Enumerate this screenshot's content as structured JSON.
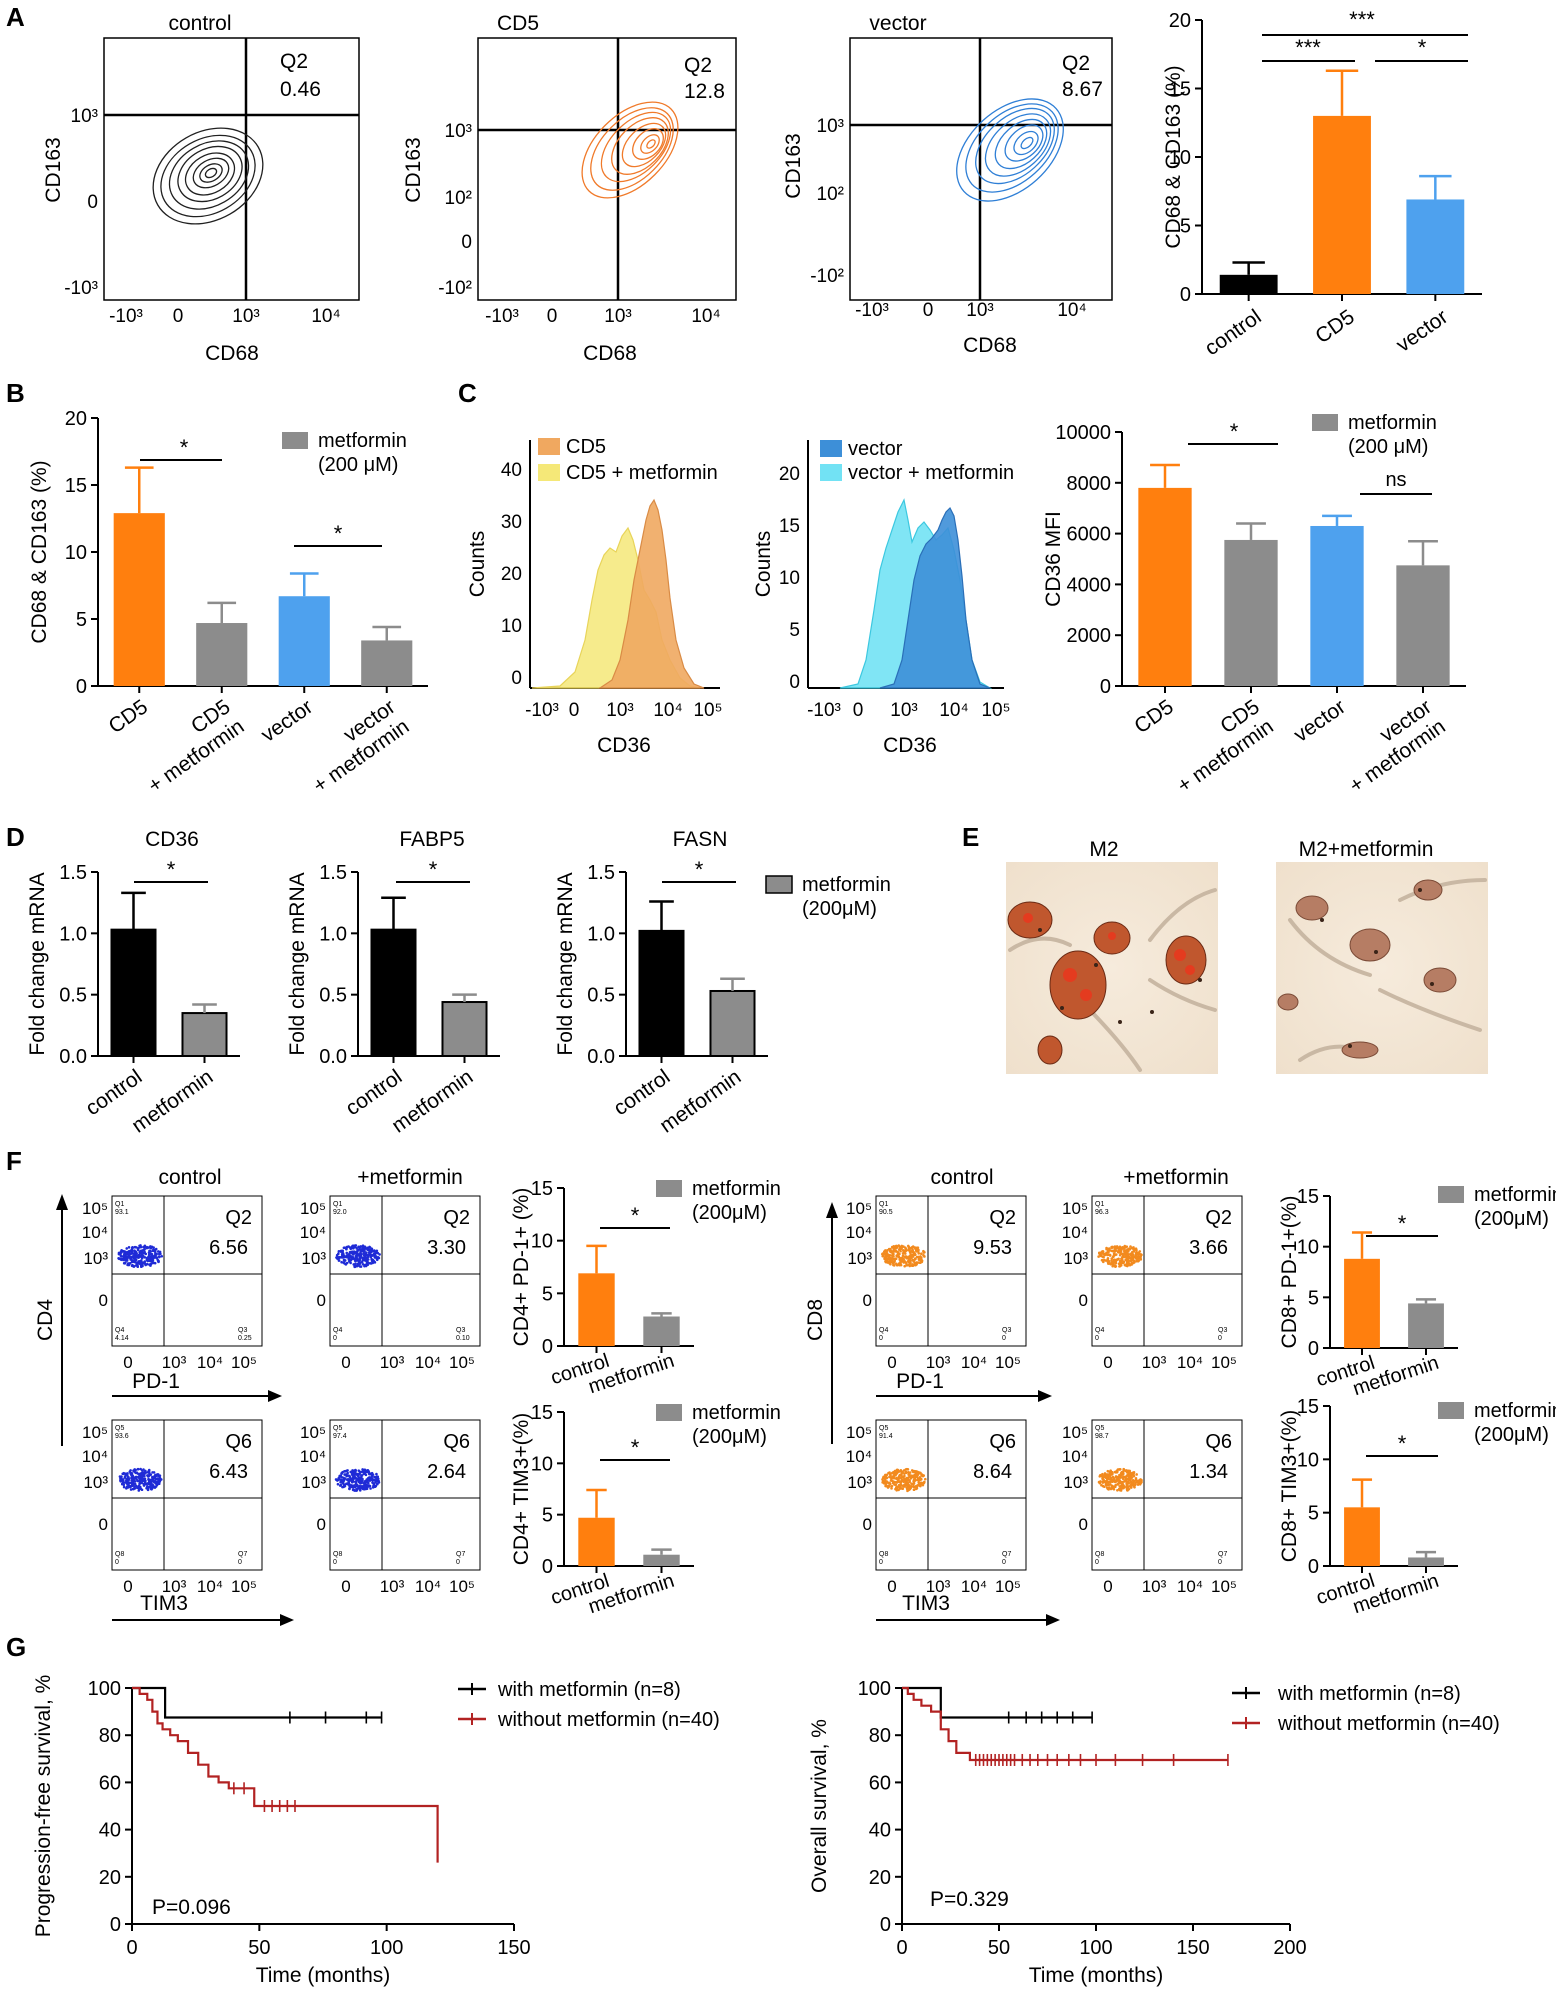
{
  "colors": {
    "black": "#000000",
    "orange": "#ff7f0e",
    "blue": "#4ea1ee",
    "grey": "#8c8c8c",
    "contour_black": "#202020",
    "contour_orange": "#f07a2a",
    "contour_blue": "#2f7fd6",
    "hist_cd5": "#f0a860",
    "hist_cd5_met": "#f5e878",
    "hist_vector": "#3d8fd8",
    "hist_vector_met": "#72e2f4",
    "survival_with": "#000000",
    "survival_without": "#b22222",
    "stain_m2": "#b5472a",
    "stain_m2_met": "#a8634a"
  },
  "panels": {
    "A": "A",
    "B": "B",
    "C": "C",
    "D": "D",
    "E": "E",
    "F": "F",
    "G": "G"
  },
  "A": {
    "flow": [
      {
        "title": "control",
        "q_label": "Q2",
        "q_value": "0.46",
        "y_ticks": [
          "10³",
          "0",
          "-10³"
        ],
        "x_ticks": [
          "-10³",
          "0",
          "10³",
          "10⁴"
        ]
      },
      {
        "title": "CD5",
        "q_label": "Q2",
        "q_value": "12.8",
        "y_ticks": [
          "10³",
          "10²",
          "0",
          "-10²"
        ],
        "x_ticks": [
          "-10³",
          "0",
          "10³",
          "10⁴"
        ]
      },
      {
        "title": "vector",
        "q_label": "Q2",
        "q_value": "8.67",
        "y_ticks": [
          "10³",
          "10²",
          "-10²"
        ],
        "x_ticks": [
          "-10³",
          "0",
          "10³",
          "10⁴"
        ]
      }
    ],
    "flow_ylabel": "CD163",
    "flow_xlabel": "CD68",
    "significance": [
      "***",
      "***",
      "*"
    ]
  },
  "B": {
    "significance": [
      "*",
      "*"
    ]
  },
  "C": {
    "hist": [
      {
        "legend": [
          "CD5",
          "CD5 + metformin"
        ],
        "y_ticks": [
          "40",
          "30",
          "20",
          "10",
          "0"
        ],
        "x_ticks": [
          "-10³",
          "0",
          "10³",
          "10⁴",
          "10⁵"
        ],
        "ylabel": "Counts",
        "xlabel": "CD36"
      },
      {
        "legend": [
          "vector",
          "vector + metformin"
        ],
        "y_ticks": [
          "20",
          "15",
          "10",
          "5",
          "0"
        ],
        "x_ticks": [
          "-10³",
          "0",
          "10³",
          "10⁴",
          "10⁵"
        ],
        "ylabel": "Counts",
        "xlabel": "CD36"
      }
    ],
    "significance": [
      "*",
      "ns"
    ]
  },
  "D": {
    "titles": [
      "CD36",
      "FABP5",
      "FASN"
    ],
    "significance": [
      "*",
      "*",
      "*"
    ]
  },
  "E": {
    "labels": [
      "M2",
      "M2+metformin"
    ]
  },
  "F": {
    "cd4_label": "CD4",
    "cd8_label": "CD8",
    "col_titles": [
      "control",
      "+metformin"
    ],
    "x_pd1": "PD-1",
    "x_tim3": "TIM3",
    "y_ticks": [
      "10⁵",
      "10⁴",
      "10³",
      "0"
    ],
    "x_ticks": [
      "0",
      "10³",
      "10⁴",
      "10⁵"
    ],
    "dots": [
      {
        "q": "Q2",
        "v": "6.56",
        "tl": "Q1",
        "tl2": "93.1",
        "bl": "Q4",
        "bl2": "4.14",
        "br": "Q3",
        "br2": "0.25"
      },
      {
        "q": "Q2",
        "v": "3.30",
        "tl": "Q1",
        "tl2": "92.0",
        "bl": "Q4",
        "bl2": "0",
        "br": "Q3",
        "br2": "0.10"
      },
      {
        "q": "Q6",
        "v": "6.43",
        "tl": "Q5",
        "tl2": "93.6",
        "bl": "Q8",
        "bl2": "0",
        "br": "Q7",
        "br2": "0"
      },
      {
        "q": "Q6",
        "v": "2.64",
        "tl": "Q5",
        "tl2": "97.4",
        "bl": "Q8",
        "bl2": "0",
        "br": "Q7",
        "br2": "0"
      },
      {
        "q": "Q2",
        "v": "9.53",
        "tl": "Q1",
        "tl2": "90.5",
        "bl": "Q4",
        "bl2": "0",
        "br": "Q3",
        "br2": "0"
      },
      {
        "q": "Q2",
        "v": "3.66",
        "tl": "Q1",
        "tl2": "96.3",
        "bl": "Q4",
        "bl2": "0",
        "br": "Q3",
        "br2": "0"
      },
      {
        "q": "Q6",
        "v": "8.64",
        "tl": "Q5",
        "tl2": "91.4",
        "bl": "Q8",
        "bl2": "0",
        "br": "Q7",
        "br2": "0"
      },
      {
        "q": "Q6",
        "v": "1.34",
        "tl": "Q5",
        "tl2": "98.7",
        "bl": "Q8",
        "bl2": "0",
        "br": "Q7",
        "br2": "0"
      }
    ]
  },
  "G": {
    "legend_with": "with metformin (n=8)",
    "legend_without": "without metformin (n=40)",
    "pfs_p": "P=0.096",
    "os_p": "P=0.329"
  },
  "chart_data": [
    {
      "id": "A_bar",
      "type": "bar",
      "categories": [
        "control",
        "CD5",
        "vector"
      ],
      "values": [
        1.4,
        13.0,
        6.9
      ],
      "errors": [
        0.9,
        3.3,
        1.7
      ],
      "colors": [
        "#000000",
        "#ff7f0e",
        "#4ea1ee"
      ],
      "ylabel": "CD68 & CD163 (%)",
      "ylim": [
        0,
        20
      ],
      "yticks": [
        0,
        5,
        10,
        15,
        20
      ]
    },
    {
      "id": "B_bar",
      "type": "bar",
      "categories": [
        "CD5",
        "CD5\n+ metformin",
        "vector",
        "vector\n+ metformin"
      ],
      "values": [
        12.9,
        4.7,
        6.7,
        3.4
      ],
      "errors": [
        3.4,
        1.5,
        1.7,
        1.0
      ],
      "colors": [
        "#ff7f0e",
        "#8c8c8c",
        "#4ea1ee",
        "#8c8c8c"
      ],
      "legend": "metformin (200 μM)",
      "ylabel": "CD68 & CD163 (%)",
      "ylim": [
        0,
        20
      ],
      "yticks": [
        0,
        5,
        10,
        15,
        20
      ]
    },
    {
      "id": "C_bar",
      "type": "bar",
      "categories": [
        "CD5",
        "CD5\n+ metformin",
        "vector",
        "vector\n+ metformin"
      ],
      "values": [
        7800,
        5750,
        6300,
        4750
      ],
      "errors": [
        900,
        650,
        400,
        950
      ],
      "colors": [
        "#ff7f0e",
        "#8c8c8c",
        "#4ea1ee",
        "#8c8c8c"
      ],
      "legend": "metformin (200 μM)",
      "ylabel": "CD36 MFI",
      "ylim": [
        0,
        10000
      ],
      "yticks": [
        0,
        2000,
        4000,
        6000,
        8000,
        10000
      ]
    },
    {
      "id": "D_CD36",
      "type": "bar",
      "title": "CD36",
      "categories": [
        "control",
        "metformin"
      ],
      "values": [
        1.03,
        0.35
      ],
      "errors": [
        0.3,
        0.07
      ],
      "colors": [
        "#000000",
        "#8c8c8c"
      ],
      "ylabel": "Fold change mRNA",
      "ylim": [
        0,
        1.5
      ],
      "yticks": [
        0.0,
        0.5,
        1.0,
        1.5
      ]
    },
    {
      "id": "D_FABP5",
      "type": "bar",
      "title": "FABP5",
      "categories": [
        "control",
        "metformin"
      ],
      "values": [
        1.03,
        0.44
      ],
      "errors": [
        0.26,
        0.06
      ],
      "colors": [
        "#000000",
        "#8c8c8c"
      ],
      "ylabel": "Fold change mRNA",
      "ylim": [
        0,
        1.5
      ],
      "yticks": [
        0.0,
        0.5,
        1.0,
        1.5
      ]
    },
    {
      "id": "D_FASN",
      "type": "bar",
      "title": "FASN",
      "categories": [
        "control",
        "metformin"
      ],
      "values": [
        1.02,
        0.53
      ],
      "errors": [
        0.24,
        0.1
      ],
      "colors": [
        "#000000",
        "#8c8c8c"
      ],
      "legend": "metformin (200μM)",
      "ylabel": "Fold change mRNA",
      "ylim": [
        0,
        1.5
      ],
      "yticks": [
        0.0,
        0.5,
        1.0,
        1.5
      ]
    },
    {
      "id": "F_CD4_PD1",
      "type": "bar",
      "categories": [
        "control",
        "metformin"
      ],
      "values": [
        6.9,
        2.8
      ],
      "errors": [
        2.6,
        0.3
      ],
      "colors": [
        "#ff7f0e",
        "#8c8c8c"
      ],
      "legend": "metformin (200μM)",
      "ylabel": "CD4+ PD-1+ (%)",
      "ylim": [
        0,
        15
      ],
      "yticks": [
        0,
        5,
        10,
        15
      ]
    },
    {
      "id": "F_CD4_TIM3",
      "type": "bar",
      "categories": [
        "control",
        "metformin"
      ],
      "values": [
        4.7,
        1.1
      ],
      "errors": [
        2.7,
        0.5
      ],
      "colors": [
        "#ff7f0e",
        "#8c8c8c"
      ],
      "legend": "metformin (200μM)",
      "ylabel": "CD4+ TIM3+(%)",
      "ylim": [
        0,
        15
      ],
      "yticks": [
        0,
        5,
        10,
        15
      ]
    },
    {
      "id": "F_CD8_PD1",
      "type": "bar",
      "categories": [
        "control",
        "metformin"
      ],
      "values": [
        8.8,
        4.4
      ],
      "errors": [
        2.6,
        0.4
      ],
      "colors": [
        "#ff7f0e",
        "#8c8c8c"
      ],
      "legend": "metformin (200μM)",
      "ylabel": "CD8+ PD-1+(%)",
      "ylim": [
        0,
        15
      ],
      "yticks": [
        0,
        5,
        10,
        15
      ]
    },
    {
      "id": "F_CD8_TIM3",
      "type": "bar",
      "categories": [
        "control",
        "metformin"
      ],
      "values": [
        5.5,
        0.8
      ],
      "errors": [
        2.6,
        0.5
      ],
      "colors": [
        "#ff7f0e",
        "#8c8c8c"
      ],
      "legend": "metformin (200μM)",
      "ylabel": "CD8+ TIM3+(%)",
      "ylim": [
        0,
        15
      ],
      "yticks": [
        0,
        5,
        10,
        15
      ]
    },
    {
      "id": "G_PFS",
      "type": "line",
      "xlabel": "Time (months)",
      "ylabel": "Progression-free survival, %",
      "xlim": [
        0,
        150
      ],
      "ylim": [
        0,
        100
      ],
      "xticks": [
        0,
        50,
        100,
        150
      ],
      "yticks": [
        0,
        20,
        40,
        60,
        80,
        100
      ],
      "series": [
        {
          "name": "with metformin (n=8)",
          "color": "#000000",
          "x": [
            0,
            13,
            13,
            98
          ],
          "y": [
            100,
            100,
            87.5,
            87.5
          ],
          "censor_x": [
            62,
            76,
            92,
            98
          ]
        },
        {
          "name": "without metformin (n=40)",
          "color": "#b22222",
          "x": [
            0,
            3,
            3,
            6,
            6,
            8,
            8,
            10,
            10,
            12,
            12,
            15,
            15,
            18,
            18,
            22,
            22,
            26,
            26,
            30,
            30,
            34,
            34,
            38,
            38,
            48,
            48,
            120,
            120
          ],
          "y": [
            100,
            100,
            97.5,
            97.5,
            95,
            95,
            90,
            90,
            85,
            85,
            82.5,
            82.5,
            80,
            80,
            77.5,
            77.5,
            72.5,
            72.5,
            67.5,
            67.5,
            62.5,
            62.5,
            60,
            60,
            57.5,
            57.5,
            50,
            50,
            26
          ],
          "censor_x": [
            40,
            44,
            52,
            55,
            58,
            61,
            64
          ]
        }
      ]
    },
    {
      "id": "G_OS",
      "type": "line",
      "xlabel": "Time (months)",
      "ylabel": "Overall survival, %",
      "xlim": [
        0,
        200
      ],
      "ylim": [
        0,
        100
      ],
      "xticks": [
        0,
        50,
        100,
        150,
        200
      ],
      "yticks": [
        0,
        20,
        40,
        60,
        80,
        100
      ],
      "series": [
        {
          "name": "with metformin (n=8)",
          "color": "#000000",
          "x": [
            0,
            20,
            20,
            98
          ],
          "y": [
            100,
            100,
            87.5,
            87.5
          ],
          "censor_x": [
            55,
            64,
            72,
            80,
            88,
            98
          ]
        },
        {
          "name": "without metformin (n=40)",
          "color": "#b22222",
          "x": [
            0,
            3,
            3,
            6,
            6,
            10,
            10,
            15,
            15,
            20,
            20,
            24,
            24,
            28,
            28,
            35,
            35,
            168
          ],
          "y": [
            100,
            100,
            97.5,
            97.5,
            95,
            95,
            92.5,
            92.5,
            90,
            90,
            82.5,
            82.5,
            77.5,
            77.5,
            72.5,
            72.5,
            69.5,
            69.5
          ],
          "censor_x": [
            38,
            40,
            42,
            44,
            46,
            48,
            50,
            52,
            54,
            56,
            58,
            62,
            66,
            70,
            75,
            80,
            86,
            92,
            100,
            110,
            124,
            140,
            168
          ]
        }
      ]
    }
  ]
}
